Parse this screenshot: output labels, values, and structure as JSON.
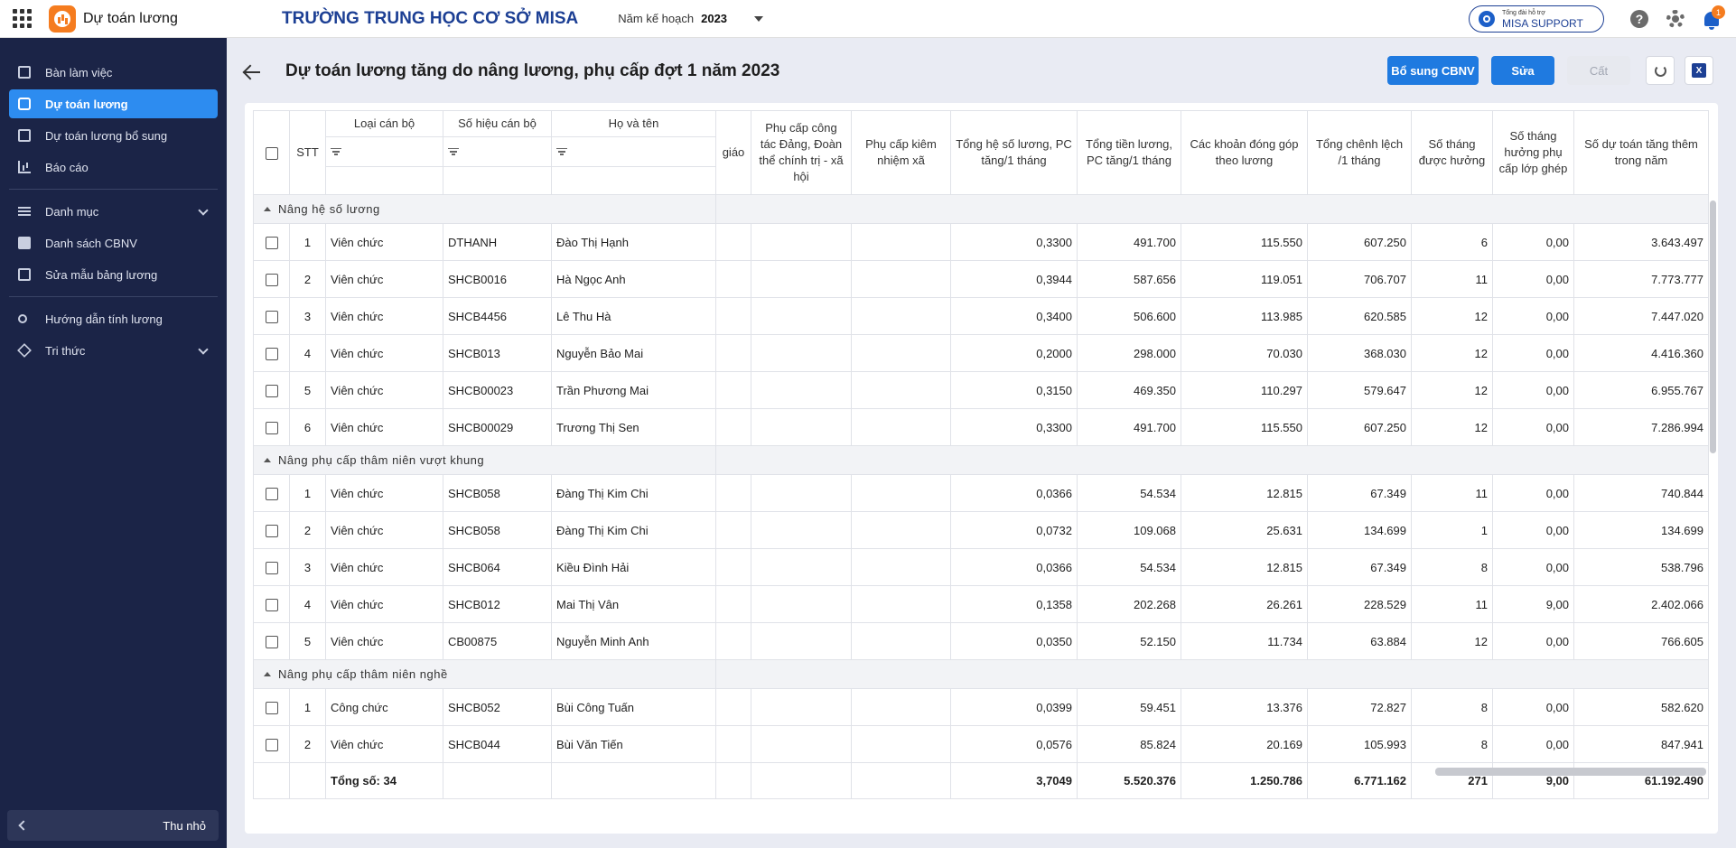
{
  "app": {
    "name": "Dự toán lương",
    "school": "TRƯỜNG TRUNG HỌC CƠ SỞ MISA",
    "plan_year_label": "Năm kế hoạch",
    "plan_year_value": "2023"
  },
  "topbar": {
    "support_small": "Tổng đài hỗ trợ",
    "support_main": "MISA SUPPORT",
    "notification_count": "1"
  },
  "sidebar": {
    "items": [
      {
        "label": "Bàn làm việc",
        "icon": "desk-icon"
      },
      {
        "label": "Dự toán lương",
        "icon": "search-icon"
      },
      {
        "label": "Dự toán lương bổ sung",
        "icon": "add-money-icon"
      },
      {
        "label": "Báo cáo",
        "icon": "chart-icon"
      },
      {
        "label": "Danh mục",
        "icon": "list-icon"
      },
      {
        "label": "Danh sách CBNV",
        "icon": "contact-icon"
      },
      {
        "label": "Sửa mẫu bảng lương",
        "icon": "form-icon"
      },
      {
        "label": "Hướng dẫn tính lương",
        "icon": "user-icon"
      },
      {
        "label": "Tri thức",
        "icon": "cube-icon"
      }
    ],
    "active_index": 1,
    "collapse_label": "Thu nhỏ"
  },
  "page": {
    "title": "Dự toán lương tăng do nâng lương, phụ cấp đợt 1 năm 2023",
    "buttons": {
      "add_staff": "Bổ sung CBNV",
      "edit": "Sửa",
      "save": "Cất"
    }
  },
  "grid": {
    "columns": {
      "stt": "STT",
      "type": "Loại cán bộ",
      "code": "Số hiệu cán bộ",
      "name": "Họ và tên",
      "giao": "giáo",
      "party": "Phụ cấp công tác Đảng, Đoàn thể chính trị - xã hội",
      "commune": "Phụ cấp kiêm nhiệm xã",
      "coef": "Tổng hệ số lương, PC tăng/1 tháng",
      "salary": "Tổng tiền lương, PC tăng/1 tháng",
      "contrib": "Các khoản đóng góp theo lương",
      "diff": "Tổng chênh lệch /1 tháng",
      "months": "Số tháng được hưởng",
      "combined": "Số tháng hưởng phụ cấp lớp ghép",
      "total": "Số dự toán tăng thêm trong năm"
    },
    "groups": [
      {
        "label": "Nâng hệ số lương",
        "rows": [
          {
            "stt": "1",
            "type": "Viên chức",
            "code": "DTHANH",
            "name": "Đào Thị Hạnh",
            "coef": "0,3300",
            "salary": "491.700",
            "contrib": "115.550",
            "diff": "607.250",
            "months": "6",
            "combined": "0,00",
            "total": "3.643.497"
          },
          {
            "stt": "2",
            "type": "Viên chức",
            "code": "SHCB0016",
            "name": "Hà Ngọc Anh",
            "coef": "0,3944",
            "salary": "587.656",
            "contrib": "119.051",
            "diff": "706.707",
            "months": "11",
            "combined": "0,00",
            "total": "7.773.777"
          },
          {
            "stt": "3",
            "type": "Viên chức",
            "code": "SHCB4456",
            "name": "Lê Thu Hà",
            "coef": "0,3400",
            "salary": "506.600",
            "contrib": "113.985",
            "diff": "620.585",
            "months": "12",
            "combined": "0,00",
            "total": "7.447.020"
          },
          {
            "stt": "4",
            "type": "Viên chức",
            "code": "SHCB013",
            "name": "Nguyễn Bảo Mai",
            "coef": "0,2000",
            "salary": "298.000",
            "contrib": "70.030",
            "diff": "368.030",
            "months": "12",
            "combined": "0,00",
            "total": "4.416.360"
          },
          {
            "stt": "5",
            "type": "Viên chức",
            "code": "SHCB00023",
            "name": "Trần Phương Mai",
            "coef": "0,3150",
            "salary": "469.350",
            "contrib": "110.297",
            "diff": "579.647",
            "months": "12",
            "combined": "0,00",
            "total": "6.955.767"
          },
          {
            "stt": "6",
            "type": "Viên chức",
            "code": "SHCB00029",
            "name": "Trương Thị Sen",
            "coef": "0,3300",
            "salary": "491.700",
            "contrib": "115.550",
            "diff": "607.250",
            "months": "12",
            "combined": "0,00",
            "total": "7.286.994"
          }
        ]
      },
      {
        "label": "Nâng phụ cấp thâm niên vượt khung",
        "rows": [
          {
            "stt": "1",
            "type": "Viên chức",
            "code": "SHCB058",
            "name": "Đàng Thị Kim Chi",
            "coef": "0,0366",
            "salary": "54.534",
            "contrib": "12.815",
            "diff": "67.349",
            "months": "11",
            "combined": "0,00",
            "total": "740.844"
          },
          {
            "stt": "2",
            "type": "Viên chức",
            "code": "SHCB058",
            "name": "Đàng Thị Kim Chi",
            "coef": "0,0732",
            "salary": "109.068",
            "contrib": "25.631",
            "diff": "134.699",
            "months": "1",
            "combined": "0,00",
            "total": "134.699"
          },
          {
            "stt": "3",
            "type": "Viên chức",
            "code": "SHCB064",
            "name": "Kiều Đình Hải",
            "coef": "0,0366",
            "salary": "54.534",
            "contrib": "12.815",
            "diff": "67.349",
            "months": "8",
            "combined": "0,00",
            "total": "538.796"
          },
          {
            "stt": "4",
            "type": "Viên chức",
            "code": "SHCB012",
            "name": "Mai Thị Vân",
            "coef": "0,1358",
            "salary": "202.268",
            "contrib": "26.261",
            "diff": "228.529",
            "months": "11",
            "combined": "9,00",
            "total": "2.402.066"
          },
          {
            "stt": "5",
            "type": "Viên chức",
            "code": "CB00875",
            "name": "Nguyễn Minh Anh",
            "coef": "0,0350",
            "salary": "52.150",
            "contrib": "11.734",
            "diff": "63.884",
            "months": "12",
            "combined": "0,00",
            "total": "766.605"
          }
        ]
      },
      {
        "label": "Nâng phụ cấp thâm niên nghề",
        "rows": [
          {
            "stt": "1",
            "type": "Công chức",
            "code": "SHCB052",
            "name": "Bùi Công Tuấn",
            "coef": "0,0399",
            "salary": "59.451",
            "contrib": "13.376",
            "diff": "72.827",
            "months": "8",
            "combined": "0,00",
            "total": "582.620"
          },
          {
            "stt": "2",
            "type": "Viên chức",
            "code": "SHCB044",
            "name": "Bùi Văn Tiến",
            "coef": "0,0576",
            "salary": "85.824",
            "contrib": "20.169",
            "diff": "105.993",
            "months": "8",
            "combined": "0,00",
            "total": "847.941"
          }
        ]
      }
    ],
    "totals": {
      "label": "Tổng số: 34",
      "coef": "3,7049",
      "salary": "5.520.376",
      "contrib": "1.250.786",
      "diff": "6.771.162",
      "months": "271",
      "combined": "9,00",
      "total": "61.192.490"
    }
  }
}
